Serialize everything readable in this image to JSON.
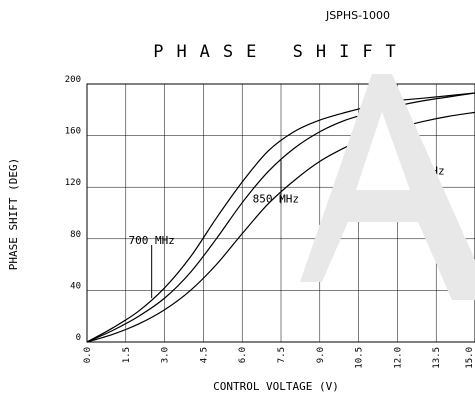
{
  "chart_data": {
    "type": "line",
    "model": "JSPHS-1000",
    "title": "PHASE SHIFT",
    "xlabel": "CONTROL VOLTAGE (V)",
    "ylabel": "PHASE SHIFT (DEG)",
    "xlim": [
      0,
      15
    ],
    "ylim": [
      0,
      200
    ],
    "xticks": [
      "0.0",
      "1.5",
      "3.0",
      "4.5",
      "6.0",
      "7.5",
      "9.0",
      "10.5",
      "12.0",
      "13.5",
      "15.0"
    ],
    "xtick_values": [
      0,
      1.5,
      3,
      4.5,
      6,
      7.5,
      9,
      10.5,
      12,
      13.5,
      15
    ],
    "yticks": [
      "0",
      "40",
      "80",
      "120",
      "160",
      "200"
    ],
    "ytick_values": [
      0,
      40,
      80,
      120,
      160,
      200
    ],
    "grid": true,
    "x": [
      0,
      1,
      2,
      3,
      4,
      5,
      6,
      7,
      8,
      9,
      10,
      11,
      12,
      13,
      14,
      15
    ],
    "series": [
      {
        "name": "700 MHz",
        "values": [
          0,
          11,
          24,
          42,
          66,
          96,
          124,
          148,
          163,
          172,
          178,
          183,
          187,
          189,
          191,
          193
        ]
      },
      {
        "name": "850 MHz",
        "values": [
          0,
          9,
          20,
          34,
          54,
          80,
          108,
          132,
          150,
          163,
          172,
          178,
          183,
          187,
          190,
          193
        ]
      },
      {
        "name": "1000 MHz",
        "values": [
          0,
          6,
          14,
          25,
          40,
          60,
          84,
          107,
          125,
          140,
          151,
          160,
          166,
          171,
          175,
          178
        ]
      }
    ],
    "annotations": [
      {
        "label": "700 MHz",
        "series": "700 MHz",
        "x": 2.5,
        "y": 34,
        "label_x": 2.5,
        "label_y": 76
      },
      {
        "label": "850 MHz",
        "series": "850 MHz",
        "x": 7.5,
        "y": 141,
        "label_x": 7.3,
        "label_y": 108
      },
      {
        "label": "1000 MHz",
        "series": "1000 MHz",
        "x": 12.5,
        "y": 168,
        "label_x": 12.8,
        "label_y": 130
      }
    ]
  }
}
